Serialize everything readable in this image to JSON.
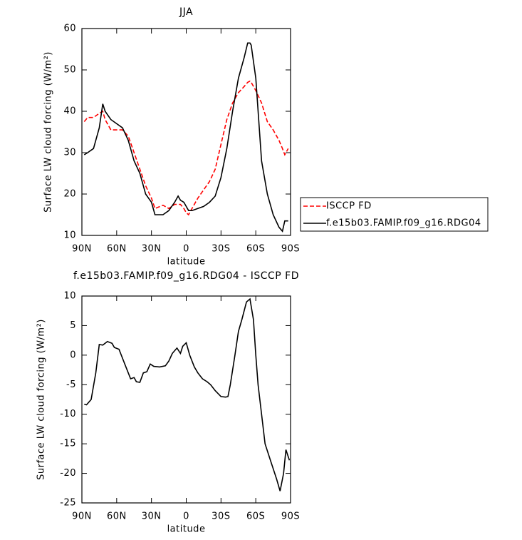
{
  "chart_data": [
    {
      "type": "line",
      "title": "JJA",
      "xlabel": "latitude",
      "ylabel": "Surface LW cloud forcing (W/m²)",
      "x": [
        88,
        85,
        80,
        75,
        72,
        70,
        65,
        60,
        55,
        50,
        45,
        40,
        35,
        30,
        27,
        20,
        15,
        10,
        7,
        5,
        2,
        0,
        -2,
        -5,
        -10,
        -15,
        -20,
        -25,
        -30,
        -35,
        -40,
        -45,
        -50,
        -53,
        -55,
        -56,
        -60,
        -65,
        -70,
        -75,
        -80,
        -83,
        -85,
        -88
      ],
      "series": [
        {
          "name": "ISCCP FD",
          "color": "#ff0000",
          "style": "dashed",
          "values": [
            37.5,
            38.5,
            38.5,
            39.5,
            40,
            38,
            35.5,
            35.5,
            35.5,
            34,
            30,
            26,
            22,
            19,
            16.5,
            17.3,
            16.5,
            17.5,
            17.5,
            17.5,
            16.5,
            15.5,
            15,
            16.5,
            19,
            21,
            23,
            26,
            32,
            38,
            42,
            44.5,
            46,
            47,
            47.3,
            47,
            45,
            42,
            37.5,
            35.5,
            33,
            31,
            29.5,
            31
          ]
        },
        {
          "name": "f.e15b03.FAMIP.f09_g16.RDG04",
          "color": "#000000",
          "style": "solid",
          "values": [
            29.5,
            30,
            31,
            36,
            41.8,
            40,
            38,
            37,
            36,
            33,
            28,
            25,
            20,
            18,
            15,
            15,
            16,
            18,
            19.5,
            18.5,
            18,
            17,
            16,
            16,
            16.5,
            17,
            18,
            19.5,
            24,
            31,
            40,
            48,
            53,
            56.5,
            56.5,
            56,
            48,
            28,
            20,
            15,
            12,
            11,
            13.5,
            13.5
          ]
        }
      ],
      "xlim": [
        90,
        -90
      ],
      "xticks": [
        {
          "value": 90,
          "label": "90N"
        },
        {
          "value": 60,
          "label": "60N"
        },
        {
          "value": 30,
          "label": "30N"
        },
        0,
        {
          "value": -30,
          "label": "30S"
        },
        {
          "value": -60,
          "label": "60S"
        },
        {
          "value": -90,
          "label": "90S"
        }
      ],
      "ylim": [
        10,
        60
      ],
      "yticks": [
        10,
        20,
        30,
        40,
        50,
        60
      ],
      "legend": "right"
    },
    {
      "type": "line",
      "title": "f.e15b03.FAMIP.f09_g16.RDG04 - ISCCP FD",
      "xlabel": "latitude",
      "ylabel": "Surface LW cloud forcing (W/m²)",
      "x": [
        88,
        86,
        82,
        78,
        75,
        72,
        68,
        64,
        62,
        58,
        53,
        48,
        45,
        43,
        40,
        37,
        34,
        31,
        28,
        23,
        18,
        15,
        12,
        8,
        5,
        3,
        0,
        -3,
        -7,
        -10,
        -14,
        -18,
        -21,
        -25,
        -30,
        -34,
        -36,
        -38,
        -42,
        -45,
        -48,
        -52,
        -55,
        -58,
        -60,
        -62,
        -65,
        -68,
        -73,
        -78,
        -81,
        -84,
        -86,
        -89
      ],
      "series": [
        {
          "color": "#000000",
          "style": "solid",
          "values": [
            -8.3,
            -8.4,
            -7.5,
            -3,
            1.8,
            1.7,
            2.3,
            2,
            1.3,
            1,
            -1.5,
            -4,
            -3.8,
            -4.5,
            -4.6,
            -3,
            -2.8,
            -1.5,
            -1.9,
            -2,
            -1.8,
            -1,
            0.3,
            1.2,
            0.3,
            1.5,
            2.1,
            0,
            -2,
            -3,
            -4,
            -4.5,
            -5,
            -6,
            -7,
            -7.1,
            -7,
            -5,
            0,
            4,
            6,
            9,
            9.5,
            6,
            0,
            -5,
            -10,
            -15,
            -18,
            -21,
            -23,
            -20,
            -16,
            -17.8
          ]
        }
      ],
      "xlim": [
        90,
        -90
      ],
      "xticks": [
        {
          "value": 90,
          "label": "90N"
        },
        {
          "value": 60,
          "label": "60N"
        },
        {
          "value": 30,
          "label": "30N"
        },
        0,
        {
          "value": -30,
          "label": "30S"
        },
        {
          "value": -60,
          "label": "60S"
        },
        {
          "value": -90,
          "label": "90S"
        }
      ],
      "ylim": [
        -25,
        10
      ],
      "yticks": [
        -25,
        -20,
        -15,
        -10,
        -5,
        0,
        5,
        10
      ]
    }
  ]
}
